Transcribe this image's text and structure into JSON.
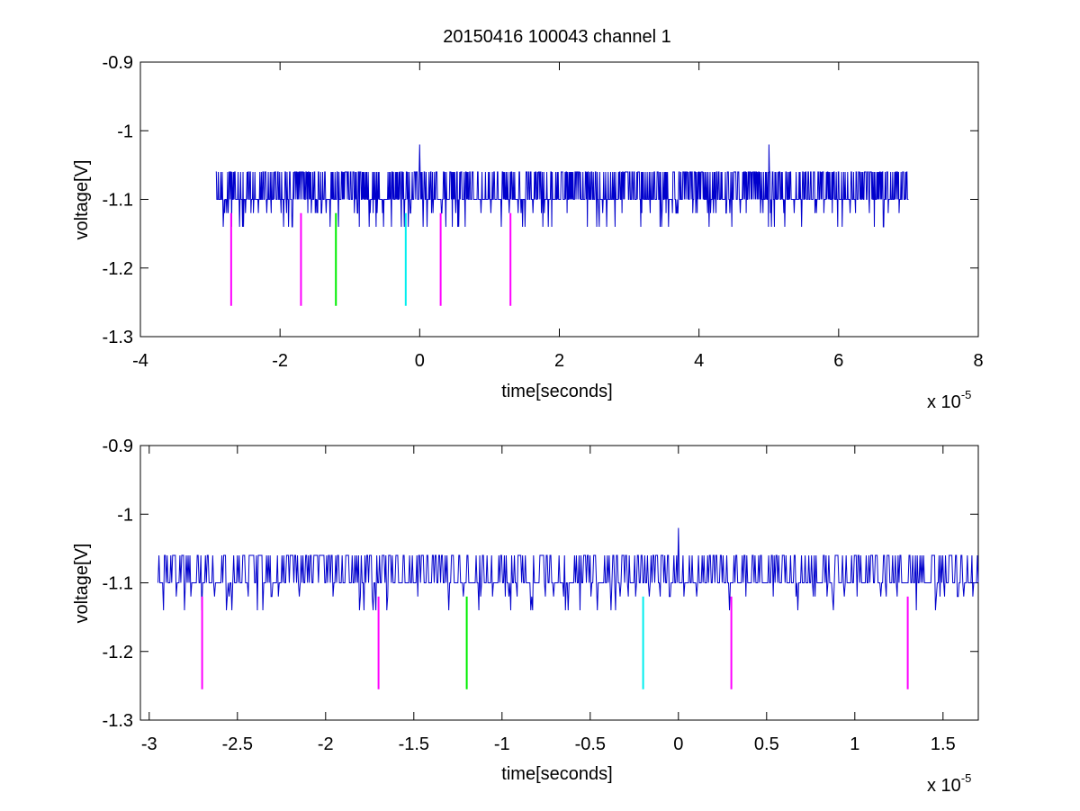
{
  "figure_title": "20150416 100043 channel 1",
  "colors": {
    "signal": "#0000cc",
    "marker_magenta": "#ff00ff",
    "marker_green": "#00ee00",
    "marker_cyan": "#00eeee",
    "axes": "#000000"
  },
  "chart_data": [
    {
      "type": "line",
      "title": "20150416 100043 channel 1",
      "xlabel": "time[seconds]",
      "ylabel": "voltage[V]",
      "x_multiplier_label": "x 10",
      "x_multiplier_exponent": "-5",
      "xlim": [
        -4,
        8
      ],
      "ylim": [
        -1.3,
        -0.9
      ],
      "xticks": [
        -4,
        -2,
        0,
        2,
        4,
        6,
        8
      ],
      "xtick_labels": [
        "-4",
        "-2",
        "0",
        "2",
        "4",
        "6",
        "8"
      ],
      "yticks": [
        -1.3,
        -1.2,
        -1.1,
        -1,
        -0.9
      ],
      "ytick_labels": [
        "-1.3",
        "-1.2",
        "-1.1",
        "-1",
        "-0.9"
      ],
      "grid": false,
      "signal": {
        "x_start": -2.92,
        "x_end": 7.0,
        "baseline": -1.1,
        "high_level": -1.06,
        "low_level": -1.14,
        "spikes": [
          {
            "x": 0.0,
            "y": -1.02
          },
          {
            "x": 5.0,
            "y": -1.02
          }
        ]
      },
      "markers": [
        {
          "x": -2.7,
          "y_top": -1.12,
          "y_bottom": -1.255,
          "color": "magenta"
        },
        {
          "x": -1.7,
          "y_top": -1.12,
          "y_bottom": -1.255,
          "color": "magenta"
        },
        {
          "x": -1.2,
          "y_top": -1.12,
          "y_bottom": -1.255,
          "color": "green"
        },
        {
          "x": -0.2,
          "y_top": -1.12,
          "y_bottom": -1.255,
          "color": "cyan"
        },
        {
          "x": 0.3,
          "y_top": -1.12,
          "y_bottom": -1.255,
          "color": "magenta"
        },
        {
          "x": 1.3,
          "y_top": -1.12,
          "y_bottom": -1.255,
          "color": "magenta"
        }
      ]
    },
    {
      "type": "line",
      "title": "",
      "xlabel": "time[seconds]",
      "ylabel": "voltage[V]",
      "x_multiplier_label": "x 10",
      "x_multiplier_exponent": "-5",
      "xlim": [
        -3.05,
        1.7
      ],
      "ylim": [
        -1.3,
        -0.9
      ],
      "xticks": [
        -3,
        -2.5,
        -2,
        -1.5,
        -1,
        -0.5,
        0,
        0.5,
        1,
        1.5
      ],
      "xtick_labels": [
        "-3",
        "-2.5",
        "-2",
        "-1.5",
        "-1",
        "-0.5",
        "0",
        "0.5",
        "1",
        "1.5"
      ],
      "yticks": [
        -1.3,
        -1.2,
        -1.1,
        -1,
        -0.9
      ],
      "ytick_labels": [
        "-1.3",
        "-1.2",
        "-1.1",
        "-1",
        "-0.9"
      ],
      "grid": false,
      "signal": {
        "x_start": -2.95,
        "x_end": 1.7,
        "baseline": -1.1,
        "high_level": -1.06,
        "low_level": -1.14,
        "spikes": [
          {
            "x": 0.0,
            "y": -1.02
          }
        ]
      },
      "markers": [
        {
          "x": -2.7,
          "y_top": -1.12,
          "y_bottom": -1.255,
          "color": "magenta"
        },
        {
          "x": -1.7,
          "y_top": -1.12,
          "y_bottom": -1.255,
          "color": "magenta"
        },
        {
          "x": -1.2,
          "y_top": -1.12,
          "y_bottom": -1.255,
          "color": "green"
        },
        {
          "x": -0.2,
          "y_top": -1.12,
          "y_bottom": -1.255,
          "color": "cyan"
        },
        {
          "x": 0.3,
          "y_top": -1.12,
          "y_bottom": -1.255,
          "color": "magenta"
        },
        {
          "x": 1.3,
          "y_top": -1.12,
          "y_bottom": -1.255,
          "color": "magenta"
        }
      ]
    }
  ]
}
